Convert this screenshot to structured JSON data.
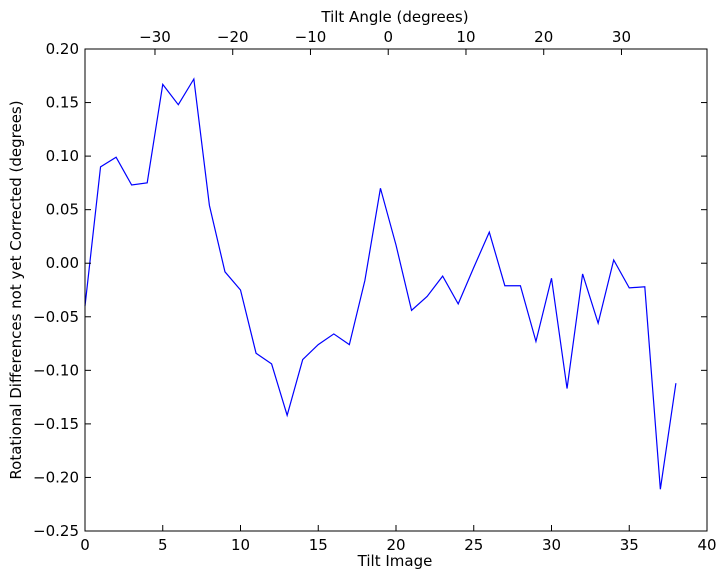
{
  "chart_data": {
    "type": "line",
    "xlabel": "Tilt Image",
    "ylabel": "Rotational Differences not yet Corrected (degrees)",
    "top_xlabel": "Tilt Angle (degrees)",
    "xlim": [
      0,
      40
    ],
    "ylim": [
      -0.25,
      0.2
    ],
    "x_ticks": [
      0,
      5,
      10,
      15,
      20,
      25,
      30,
      35,
      40
    ],
    "x_tick_labels": [
      "0",
      "5",
      "10",
      "15",
      "20",
      "25",
      "30",
      "35",
      "40"
    ],
    "y_ticks": [
      -0.25,
      -0.2,
      -0.15,
      -0.1,
      -0.05,
      0.0,
      0.05,
      0.1,
      0.15,
      0.2
    ],
    "y_tick_labels": [
      "−0.25",
      "−0.20",
      "−0.15",
      "−0.10",
      "−0.05",
      "0.00",
      "0.05",
      "0.10",
      "0.15",
      "0.20"
    ],
    "top_ticks": [
      -30,
      -20,
      -10,
      0,
      10,
      20,
      30
    ],
    "top_tick_labels": [
      "−30",
      "−20",
      "−10",
      "0",
      "10",
      "20",
      "30"
    ],
    "top_axis_map": {
      "tilt_image_at_zero_angle": 19.5,
      "degrees_per_image": 2
    },
    "grid": false,
    "line_color": "#0000ff",
    "series": [
      {
        "x": [
          0,
          1,
          2,
          3,
          4,
          5,
          6,
          7,
          8,
          9,
          10,
          11,
          12,
          13,
          14,
          15,
          16,
          17,
          18,
          19,
          20,
          21,
          22,
          23,
          24,
          25,
          26,
          27,
          28,
          29,
          30,
          31,
          32,
          33,
          34,
          35,
          36,
          37,
          38
        ],
        "values": [
          -0.04,
          0.09,
          0.099,
          0.073,
          0.075,
          0.167,
          0.148,
          0.172,
          0.054,
          -0.008,
          -0.025,
          -0.084,
          -0.094,
          -0.142,
          -0.09,
          -0.076,
          -0.066,
          -0.076,
          -0.016,
          0.07,
          0.017,
          -0.044,
          -0.031,
          -0.012,
          -0.038,
          -0.004,
          0.029,
          -0.021,
          -0.021,
          -0.073,
          -0.014,
          -0.117,
          -0.01,
          -0.056,
          0.003,
          -0.023,
          -0.022,
          -0.211,
          -0.112
        ]
      }
    ]
  }
}
